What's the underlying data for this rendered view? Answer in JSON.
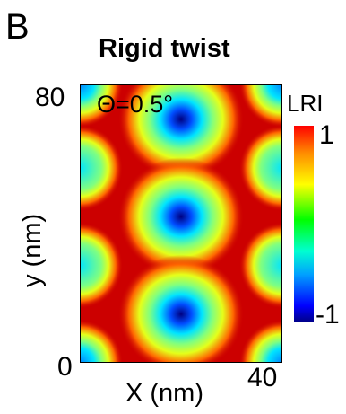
{
  "panel_label": "B",
  "theta_annotation": "Θ=0.5°",
  "colorbar": {
    "title": "LRI",
    "max_label": "1",
    "min_label": "-1"
  },
  "chart_data": {
    "type": "heatmap",
    "title": "Rigid twist",
    "xlabel": "X (nm)",
    "ylabel": "y  (nm)",
    "xlim": [
      0,
      40
    ],
    "ylim": [
      0,
      80
    ],
    "x_tick_labels": [
      "0",
      "40"
    ],
    "y_tick_labels": [
      "0",
      "80"
    ],
    "value_range": [
      -1,
      1
    ],
    "colormap": "jet",
    "twist_angle_deg": 0.5,
    "minima": [
      {
        "x": 20,
        "y": 70,
        "value": -1
      },
      {
        "x": 20,
        "y": 42,
        "value": -1
      },
      {
        "x": 20,
        "y": 14,
        "value": -1
      },
      {
        "x": 0,
        "y": 56,
        "value": -0.3
      },
      {
        "x": 0,
        "y": 28,
        "value": -0.3
      },
      {
        "x": 40,
        "y": 56,
        "value": -0.3
      },
      {
        "x": 40,
        "y": 28,
        "value": -0.3
      },
      {
        "x": 0,
        "y": 0,
        "value": -0.5
      },
      {
        "x": 40,
        "y": 0,
        "value": -0.5
      },
      {
        "x": 0,
        "y": 80,
        "value": -0.5
      },
      {
        "x": 40,
        "y": 80,
        "value": -0.5
      }
    ],
    "background_value": 0.85
  }
}
